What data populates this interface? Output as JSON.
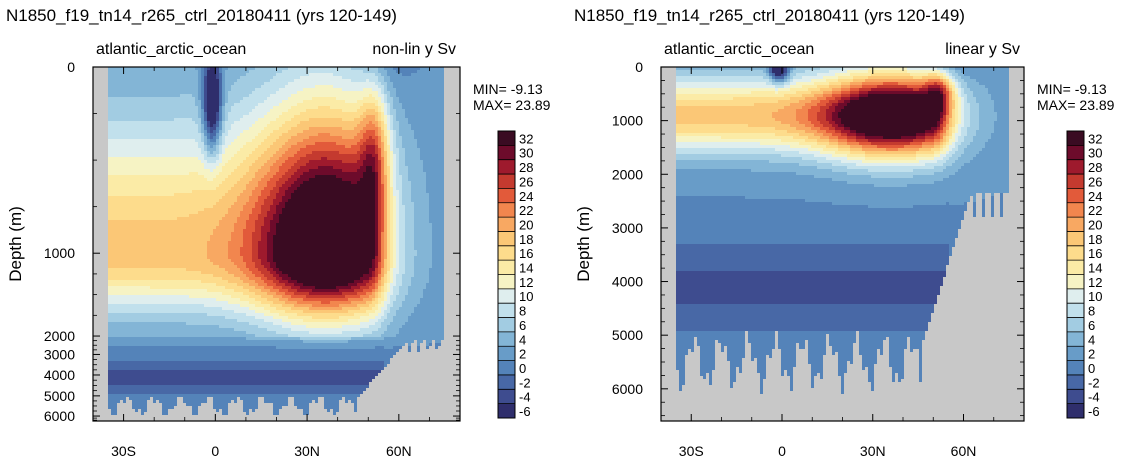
{
  "chart_data": [
    {
      "type": "heatmap",
      "title": "N1850_f19_tn14_r265_ctrl_20180411 (yrs 120-149)",
      "left_label": "atlantic_arctic_ocean",
      "right_label": "non-lin y Sv",
      "ylabel": "Depth (m)",
      "ylim": [
        0,
        6600
      ],
      "y_scale": "non-linear",
      "xlim": [
        -40,
        80
      ],
      "x_ticks": [
        -30,
        0,
        30,
        60
      ],
      "x_tick_labels": [
        "30S",
        "0",
        "30N",
        "60N"
      ],
      "y_ticks": [
        0,
        1000,
        2000,
        3000,
        4000,
        5000,
        6000
      ],
      "y_tick_labels": [
        "0",
        "1000",
        "2000",
        "3000",
        "4000",
        "5000",
        "6000"
      ],
      "stats": {
        "min_label": "MIN= -9.13",
        "max_label": "MAX= 23.89"
      },
      "features": {
        "cell_center_lat": 36,
        "cell_center_depth": 1000,
        "cell_max": 23.89,
        "surface_min_lat": -1,
        "surface_min_depth": 200,
        "surface_min": -9.13
      }
    },
    {
      "type": "heatmap",
      "title": "N1850_f19_tn14_r265_ctrl_20180411 (yrs 120-149)",
      "left_label": "atlantic_arctic_ocean",
      "right_label": "linear y Sv",
      "ylabel": "Depth (m)",
      "ylim": [
        0,
        6600
      ],
      "y_scale": "linear",
      "xlim": [
        -40,
        80
      ],
      "x_ticks": [
        -30,
        0,
        30,
        60
      ],
      "x_tick_labels": [
        "30S",
        "0",
        "30N",
        "60N"
      ],
      "y_ticks": [
        0,
        1000,
        2000,
        3000,
        4000,
        5000,
        6000
      ],
      "y_tick_labels": [
        "0",
        "1000",
        "2000",
        "3000",
        "4000",
        "5000",
        "6000"
      ],
      "stats": {
        "min_label": "MIN= -9.13",
        "max_label": "MAX= 23.89"
      },
      "features": {
        "cell_center_lat": 36,
        "cell_center_depth": 900,
        "cell_max": 23.89,
        "surface_min_lat": -1,
        "surface_min_depth": 20,
        "surface_min": -9.13
      }
    }
  ],
  "colorbar": {
    "levels": [
      32,
      30,
      28,
      26,
      24,
      22,
      20,
      18,
      16,
      14,
      12,
      10,
      8,
      6,
      4,
      2,
      0,
      -2,
      -4,
      -6
    ],
    "labels": [
      "32",
      "30",
      "28",
      "26",
      "24",
      "22",
      "20",
      "18",
      "16",
      "14",
      "12",
      "10",
      "8",
      "6",
      "4",
      "2",
      "0",
      "-2",
      "-4",
      "-6"
    ],
    "colors": [
      "#3a0b22",
      "#6d0b2b",
      "#9e1a2d",
      "#c43a2f",
      "#e25a3a",
      "#f2864e",
      "#f8a862",
      "#fbc776",
      "#fddc8c",
      "#fbeba6",
      "#f6f3c4",
      "#dfeeee",
      "#c1e0ec",
      "#a2cce2",
      "#83b5d6",
      "#689cc8",
      "#5483b9",
      "#4868a6",
      "#3e4c8f",
      "#2f2e6c"
    ]
  },
  "colors": {
    "land": "#c8c8c8",
    "background": "#ffffff"
  }
}
